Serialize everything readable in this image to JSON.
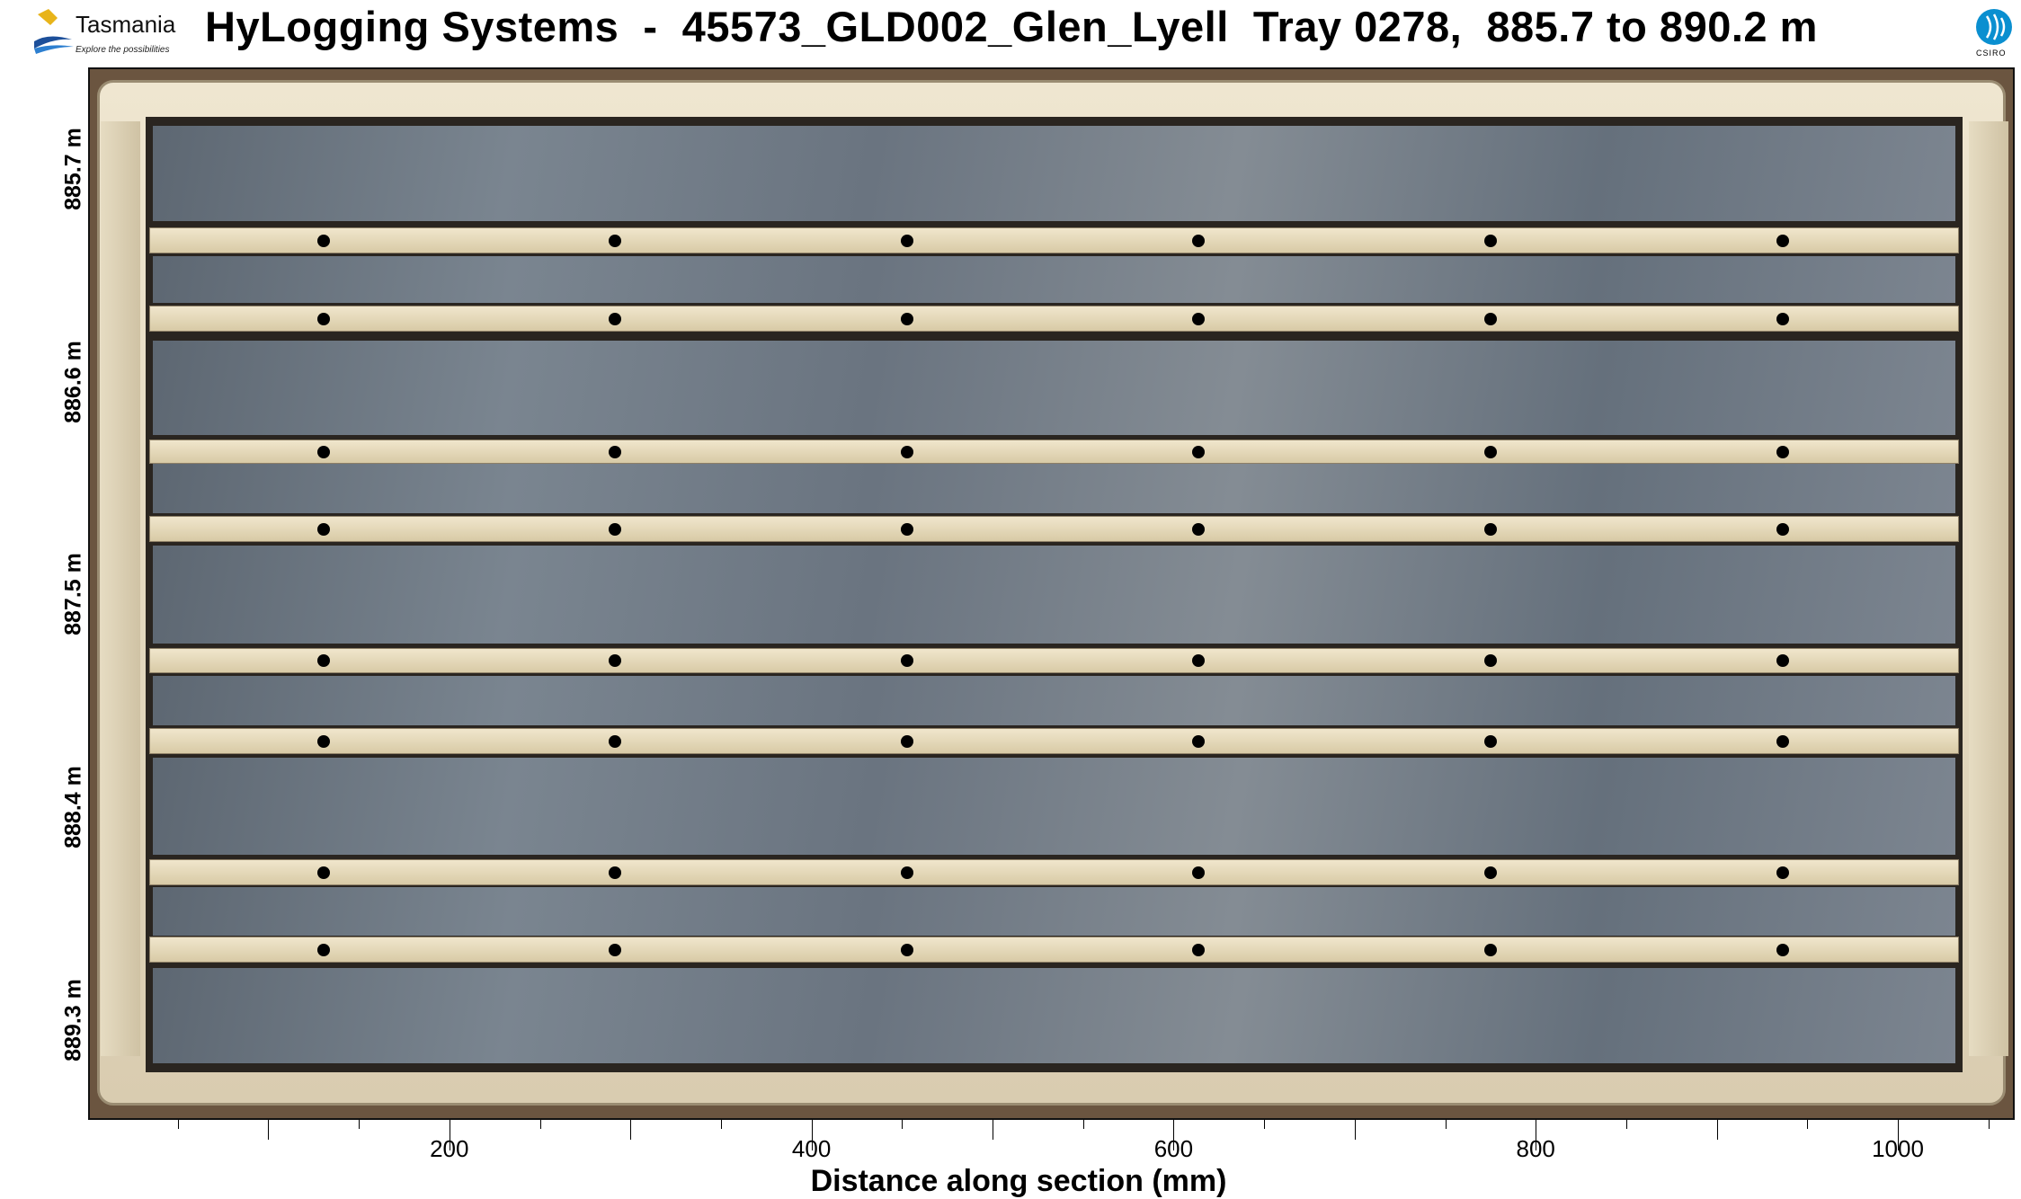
{
  "header": {
    "title": "HyLogging Systems  -  45573_GLD002_Glen_Lyell  Tray 0278,  885.7 to 890.2 m",
    "left_logo": {
      "name": "Tasmania",
      "tagline": "Explore the possibilities"
    },
    "right_logo": {
      "name": "CSIRO"
    }
  },
  "image_panel": {
    "y_labels": [
      "885.7 m",
      "886.6 m",
      "887.5 m",
      "888.4 m",
      "889.3 m"
    ],
    "y_depths": [
      885.7,
      886.6,
      887.5,
      888.4,
      889.3
    ],
    "x_axis": {
      "title": "Distance along section (mm)",
      "ticks": [
        200,
        400,
        600,
        800,
        1000
      ],
      "minor_step": 50,
      "range": [
        0,
        1065
      ]
    },
    "colors": {
      "tray": "#e6dcc2",
      "core": "#6f7985",
      "background": "#6b5540"
    }
  }
}
